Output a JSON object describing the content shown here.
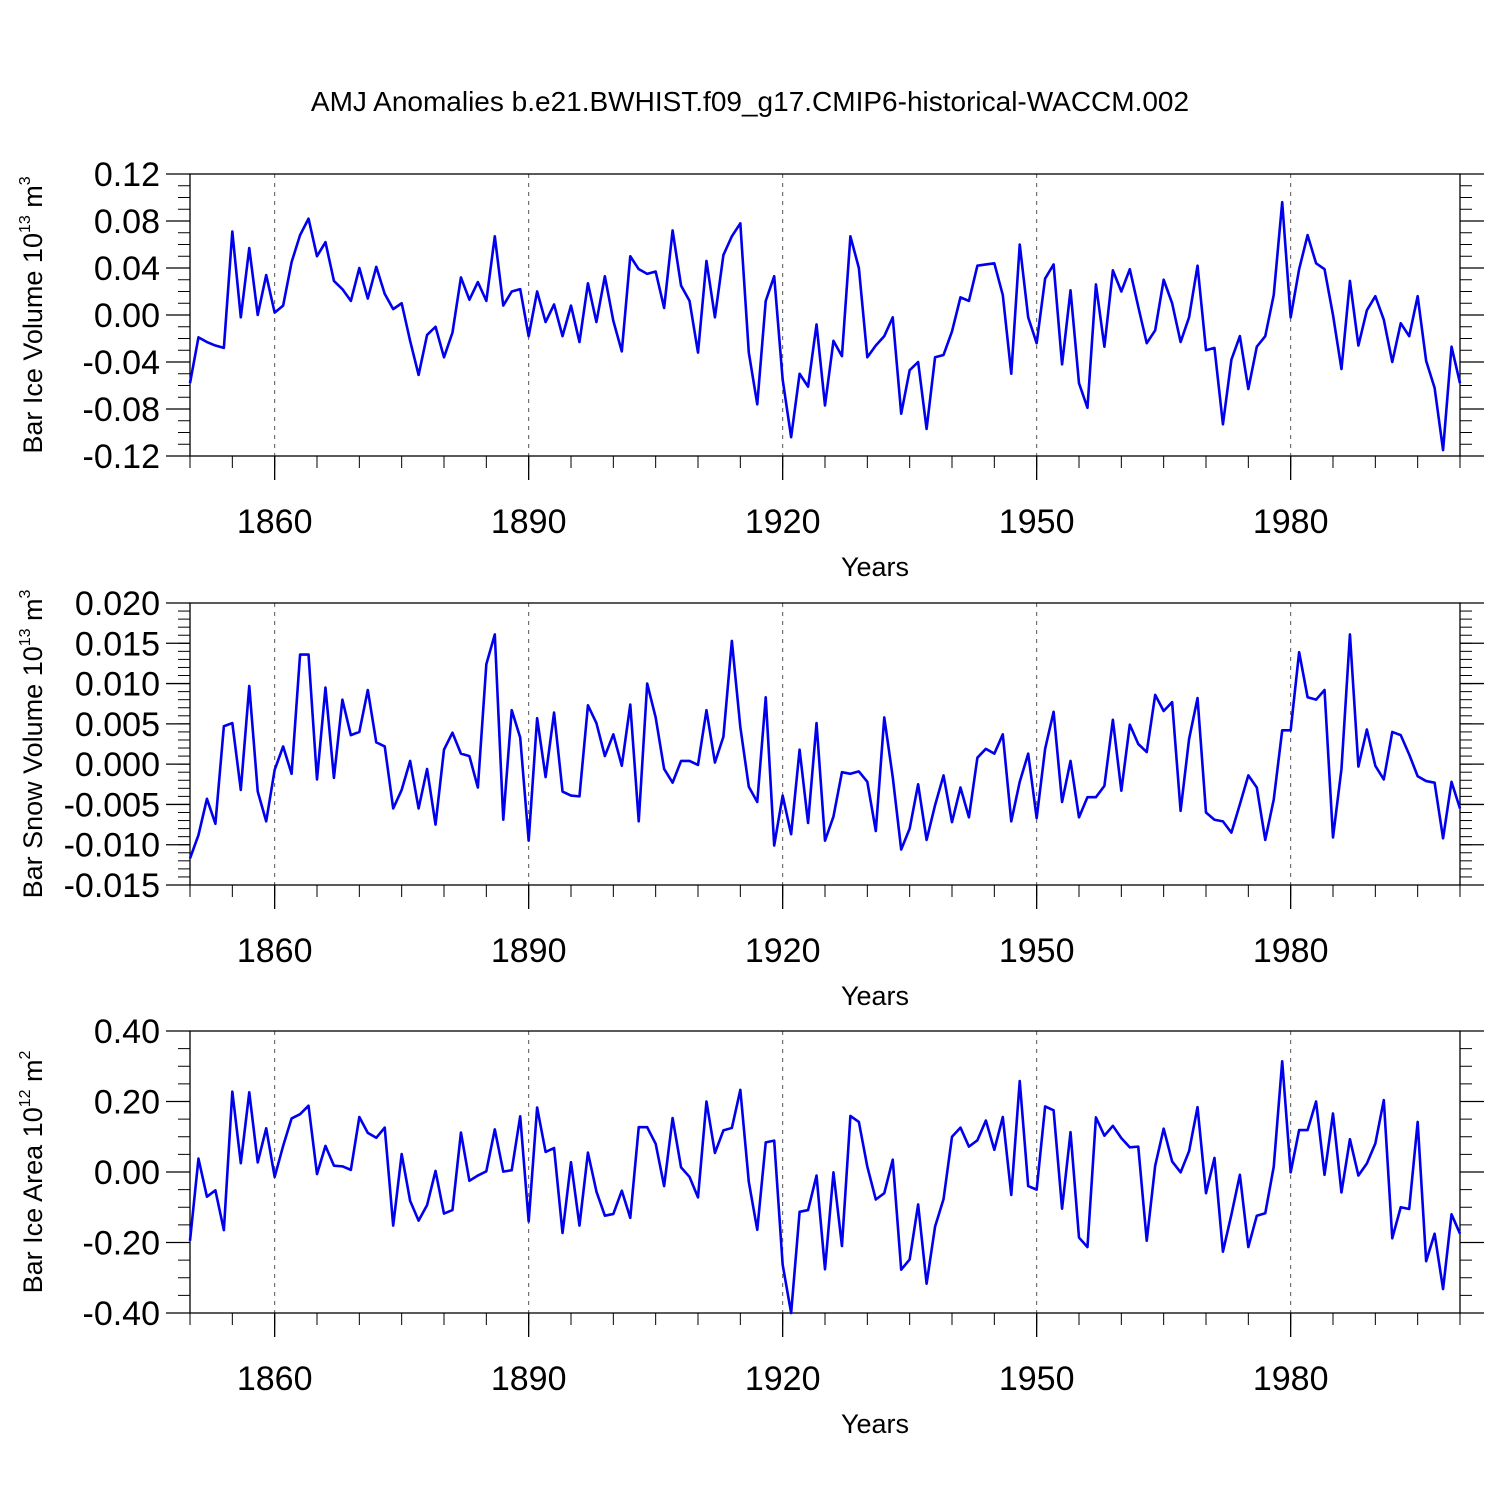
{
  "title": "AMJ Anomalies b.e21.BWHIST.f09_g17.CMIP6-historical-WACCM.002",
  "colors": {
    "series": "#0000ee",
    "axis": "#000000",
    "grid": "#555555"
  },
  "chart_data": [
    {
      "type": "line",
      "ylabel": "Bar Ice Volume 10",
      "ylabel_exponent": "13",
      "ylabel_unit": " m",
      "ylabel_unit_exponent": "3",
      "xlabel": "Years",
      "xlim": [
        1850,
        2000
      ],
      "ylim": [
        -0.12,
        0.12
      ],
      "yticks": [
        -0.12,
        -0.08,
        -0.04,
        0.0,
        0.04,
        0.08,
        0.12
      ],
      "ytick_labels": [
        "-0.12",
        "-0.08",
        "-0.04",
        "0.00",
        "0.04",
        "0.08",
        "0.12"
      ],
      "yminor_step": 0.01,
      "xticks": [
        1860,
        1890,
        1920,
        1950,
        1980
      ],
      "xtick_labels": [
        "1860",
        "1890",
        "1920",
        "1950",
        "1980"
      ],
      "x_start": 1850,
      "values": [
        -0.058,
        -0.019,
        -0.023,
        -0.026,
        -0.028,
        0.071,
        -0.002,
        0.057,
        0.0,
        0.034,
        0.002,
        0.008,
        0.045,
        0.068,
        0.082,
        0.05,
        0.062,
        0.029,
        0.022,
        0.012,
        0.04,
        0.014,
        0.041,
        0.018,
        0.005,
        0.01,
        -0.022,
        -0.051,
        -0.017,
        -0.01,
        -0.036,
        -0.015,
        0.032,
        0.013,
        0.028,
        0.012,
        0.067,
        0.008,
        0.02,
        0.022,
        -0.018,
        0.02,
        -0.006,
        0.009,
        -0.018,
        0.008,
        -0.023,
        0.027,
        -0.006,
        0.033,
        -0.005,
        -0.031,
        0.05,
        0.039,
        0.035,
        0.037,
        0.006,
        0.072,
        0.025,
        0.012,
        -0.032,
        0.046,
        -0.002,
        0.051,
        0.067,
        0.078,
        -0.032,
        -0.076,
        0.012,
        0.033,
        -0.055,
        -0.104,
        -0.05,
        -0.061,
        -0.008,
        -0.077,
        -0.022,
        -0.035,
        0.067,
        0.04,
        -0.036,
        -0.026,
        -0.018,
        -0.002,
        -0.084,
        -0.047,
        -0.04,
        -0.097,
        -0.036,
        -0.034,
        -0.014,
        0.015,
        0.012,
        0.042,
        0.043,
        0.044,
        0.017,
        -0.05,
        0.06,
        -0.002,
        -0.024,
        0.031,
        0.043,
        -0.042,
        0.021,
        -0.058,
        -0.079,
        0.026,
        -0.027,
        0.038,
        0.02,
        0.039,
        0.007,
        -0.024,
        -0.013,
        0.03,
        0.01,
        -0.023,
        -0.002,
        0.042,
        -0.03,
        -0.028,
        -0.093,
        -0.038,
        -0.018,
        -0.063,
        -0.027,
        -0.018,
        0.017,
        0.096,
        -0.002,
        0.039,
        0.068,
        0.044,
        0.039,
        0.0,
        -0.046,
        0.029,
        -0.026,
        0.004,
        0.016,
        -0.004,
        -0.04,
        -0.007,
        -0.018,
        0.016,
        -0.039,
        -0.062,
        -0.115,
        -0.027,
        -0.058
      ]
    },
    {
      "type": "line",
      "ylabel": "Bar Snow Volume 10",
      "ylabel_exponent": "13",
      "ylabel_unit": " m",
      "ylabel_unit_exponent": "3",
      "xlabel": "Years",
      "xlim": [
        1850,
        2000
      ],
      "ylim": [
        -0.015,
        0.02
      ],
      "yticks": [
        -0.015,
        -0.01,
        -0.005,
        0.0,
        0.005,
        0.01,
        0.015,
        0.02
      ],
      "ytick_labels": [
        "-0.015",
        "-0.010",
        "-0.005",
        "0.000",
        "0.005",
        "0.010",
        "0.015",
        "0.020"
      ],
      "yminor_step": 0.001,
      "xticks": [
        1860,
        1890,
        1920,
        1950,
        1980
      ],
      "xtick_labels": [
        "1860",
        "1890",
        "1920",
        "1950",
        "1980"
      ],
      "x_start": 1850,
      "values": [
        -0.0117,
        -0.0088,
        -0.0043,
        -0.0074,
        0.0047,
        0.0051,
        -0.0032,
        0.0097,
        -0.0034,
        -0.0071,
        -0.0007,
        0.0022,
        -0.0012,
        0.0136,
        0.0136,
        -0.0019,
        0.0095,
        -0.0017,
        0.008,
        0.0036,
        0.004,
        0.0092,
        0.0027,
        0.0022,
        -0.0055,
        -0.0032,
        0.0004,
        -0.0055,
        -0.0006,
        -0.0075,
        0.0018,
        0.0039,
        0.0013,
        0.001,
        -0.0029,
        0.0124,
        0.0161,
        -0.0069,
        0.0067,
        0.0033,
        -0.0095,
        0.0057,
        -0.0016,
        0.0064,
        -0.0034,
        -0.0039,
        -0.004,
        0.0073,
        0.0051,
        0.001,
        0.0037,
        -0.0002,
        0.0074,
        -0.0071,
        0.01,
        0.0058,
        -0.0006,
        -0.0023,
        0.0004,
        0.0004,
        -0.0001,
        0.0067,
        0.0002,
        0.0034,
        0.0153,
        0.0046,
        -0.0028,
        -0.0047,
        0.0083,
        -0.0101,
        -0.0039,
        -0.0087,
        0.0018,
        -0.0073,
        0.0051,
        -0.0095,
        -0.0065,
        -0.001,
        -0.0012,
        -0.0009,
        -0.0022,
        -0.0083,
        0.0058,
        -0.0016,
        -0.0106,
        -0.008,
        -0.0025,
        -0.0094,
        -0.0051,
        -0.0014,
        -0.0072,
        -0.0029,
        -0.0066,
        0.0008,
        0.0019,
        0.0013,
        0.0037,
        -0.0071,
        -0.0022,
        0.0013,
        -0.0067,
        0.0019,
        0.0065,
        -0.0047,
        0.0004,
        -0.0066,
        -0.0041,
        -0.0041,
        -0.0027,
        0.0055,
        -0.0033,
        0.0049,
        0.0025,
        0.0015,
        0.0086,
        0.0066,
        0.0077,
        -0.0058,
        0.0031,
        0.0082,
        -0.006,
        -0.0069,
        -0.0071,
        -0.0085,
        -0.005,
        -0.0014,
        -0.0029,
        -0.0094,
        -0.0044,
        0.0042,
        0.0042,
        0.0139,
        0.0083,
        0.008,
        0.0092,
        -0.0091,
        -0.0006,
        0.0161,
        -0.0003,
        0.0043,
        -0.0002,
        -0.0019,
        0.004,
        0.0036,
        0.0012,
        -0.0015,
        -0.0021,
        -0.0023,
        -0.0092,
        -0.0022,
        -0.0055
      ]
    },
    {
      "type": "line",
      "ylabel": "Bar Ice Area 10",
      "ylabel_exponent": "12",
      "ylabel_unit": " m",
      "ylabel_unit_exponent": "2",
      "xlabel": "Years",
      "xlim": [
        1850,
        2000
      ],
      "ylim": [
        -0.4,
        0.4
      ],
      "yticks": [
        -0.4,
        -0.2,
        0.0,
        0.2,
        0.4
      ],
      "ytick_labels": [
        "-0.40",
        "-0.20",
        "0.00",
        "0.20",
        "0.40"
      ],
      "yminor_step": 0.05,
      "xticks": [
        1860,
        1890,
        1920,
        1950,
        1980
      ],
      "xtick_labels": [
        "1860",
        "1890",
        "1920",
        "1950",
        "1980"
      ],
      "x_start": 1850,
      "values": [
        -0.195,
        0.038,
        -0.07,
        -0.052,
        -0.165,
        0.228,
        0.025,
        0.226,
        0.027,
        0.124,
        -0.014,
        0.074,
        0.152,
        0.164,
        0.188,
        -0.006,
        0.074,
        0.018,
        0.016,
        0.006,
        0.156,
        0.111,
        0.097,
        0.126,
        -0.152,
        0.051,
        -0.082,
        -0.138,
        -0.094,
        0.003,
        -0.118,
        -0.108,
        0.112,
        -0.025,
        -0.01,
        0.002,
        0.121,
        0.001,
        0.005,
        0.158,
        -0.14,
        0.183,
        0.057,
        0.068,
        -0.173,
        0.028,
        -0.152,
        0.055,
        -0.055,
        -0.124,
        -0.119,
        -0.053,
        -0.13,
        0.127,
        0.127,
        0.08,
        -0.04,
        0.153,
        0.013,
        -0.014,
        -0.072,
        0.2,
        0.054,
        0.118,
        0.125,
        0.233,
        -0.028,
        -0.164,
        0.084,
        0.089,
        -0.263,
        -0.4,
        -0.113,
        -0.108,
        -0.01,
        -0.276,
        -0.001,
        -0.21,
        0.159,
        0.142,
        0.015,
        -0.078,
        -0.06,
        0.035,
        -0.277,
        -0.248,
        -0.092,
        -0.317,
        -0.155,
        -0.077,
        0.1,
        0.126,
        0.072,
        0.09,
        0.146,
        0.063,
        0.156,
        -0.065,
        0.258,
        -0.04,
        -0.05,
        0.186,
        0.175,
        -0.104,
        0.113,
        -0.186,
        -0.213,
        0.155,
        0.103,
        0.131,
        0.096,
        0.07,
        0.072,
        -0.195,
        0.018,
        0.123,
        0.03,
        -0.001,
        0.059,
        0.184,
        -0.06,
        0.04,
        -0.226,
        -0.121,
        -0.008,
        -0.213,
        -0.124,
        -0.117,
        0.015,
        0.314,
        -0.001,
        0.119,
        0.119,
        0.2,
        -0.008,
        0.166,
        -0.058,
        0.093,
        -0.01,
        0.024,
        0.081,
        0.204,
        -0.188,
        -0.1,
        -0.105,
        0.142,
        -0.253,
        -0.175,
        -0.332,
        -0.12,
        -0.175
      ]
    }
  ]
}
